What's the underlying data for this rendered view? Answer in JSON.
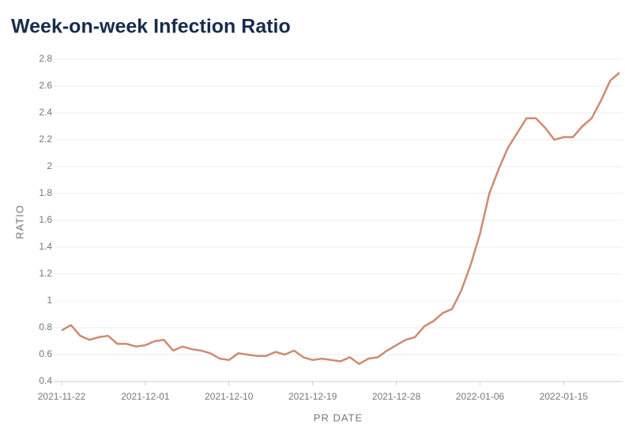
{
  "chart_data": {
    "type": "line",
    "title": "Week-on-week Infection Ratio",
    "x_label": "PR DATE",
    "y_label": "RATIO",
    "x": [
      "2021-11-22",
      "2021-11-23",
      "2021-11-24",
      "2021-11-25",
      "2021-11-26",
      "2021-11-27",
      "2021-11-28",
      "2021-11-29",
      "2021-11-30",
      "2021-12-01",
      "2021-12-02",
      "2021-12-03",
      "2021-12-04",
      "2021-12-05",
      "2021-12-06",
      "2021-12-07",
      "2021-12-08",
      "2021-12-09",
      "2021-12-10",
      "2021-12-11",
      "2021-12-12",
      "2021-12-13",
      "2021-12-14",
      "2021-12-15",
      "2021-12-16",
      "2021-12-17",
      "2021-12-18",
      "2021-12-19",
      "2021-12-20",
      "2021-12-21",
      "2021-12-22",
      "2021-12-23",
      "2021-12-24",
      "2021-12-25",
      "2021-12-26",
      "2021-12-27",
      "2021-12-28",
      "2021-12-29",
      "2021-12-30",
      "2021-12-31",
      "2022-01-01",
      "2022-01-02",
      "2022-01-03",
      "2022-01-04",
      "2022-01-05",
      "2022-01-06",
      "2022-01-07",
      "2022-01-08",
      "2022-01-09",
      "2022-01-10",
      "2022-01-11",
      "2022-01-12",
      "2022-01-13",
      "2022-01-14",
      "2022-01-15",
      "2022-01-16",
      "2022-01-17",
      "2022-01-18",
      "2022-01-19",
      "2022-01-20",
      "2022-01-21"
    ],
    "values": [
      0.78,
      0.82,
      0.74,
      0.71,
      0.73,
      0.74,
      0.68,
      0.68,
      0.66,
      0.67,
      0.7,
      0.71,
      0.63,
      0.66,
      0.64,
      0.63,
      0.61,
      0.57,
      0.56,
      0.61,
      0.6,
      0.59,
      0.59,
      0.62,
      0.6,
      0.63,
      0.58,
      0.56,
      0.57,
      0.56,
      0.55,
      0.58,
      0.53,
      0.57,
      0.58,
      0.63,
      0.67,
      0.71,
      0.73,
      0.81,
      0.85,
      0.91,
      0.94,
      1.08,
      1.27,
      1.5,
      1.8,
      1.98,
      2.14,
      2.25,
      2.36,
      2.36,
      2.29,
      2.2,
      2.22,
      2.22,
      2.3,
      2.36,
      2.49,
      2.64,
      2.7
    ],
    "color": "#cf8a6f",
    "xlim": [
      "2021-11-22",
      "2022-01-21"
    ],
    "xticks": [
      "2021-11-22",
      "2021-12-01",
      "2021-12-10",
      "2021-12-19",
      "2021-12-28",
      "2022-01-06",
      "2022-01-15"
    ],
    "ylim": [
      0.4,
      2.8
    ],
    "yticks": [
      0.4,
      0.6,
      0.8,
      1,
      1.2,
      1.4,
      1.6,
      1.8,
      2,
      2.2,
      2.4,
      2.6,
      2.8
    ],
    "grid": true
  }
}
